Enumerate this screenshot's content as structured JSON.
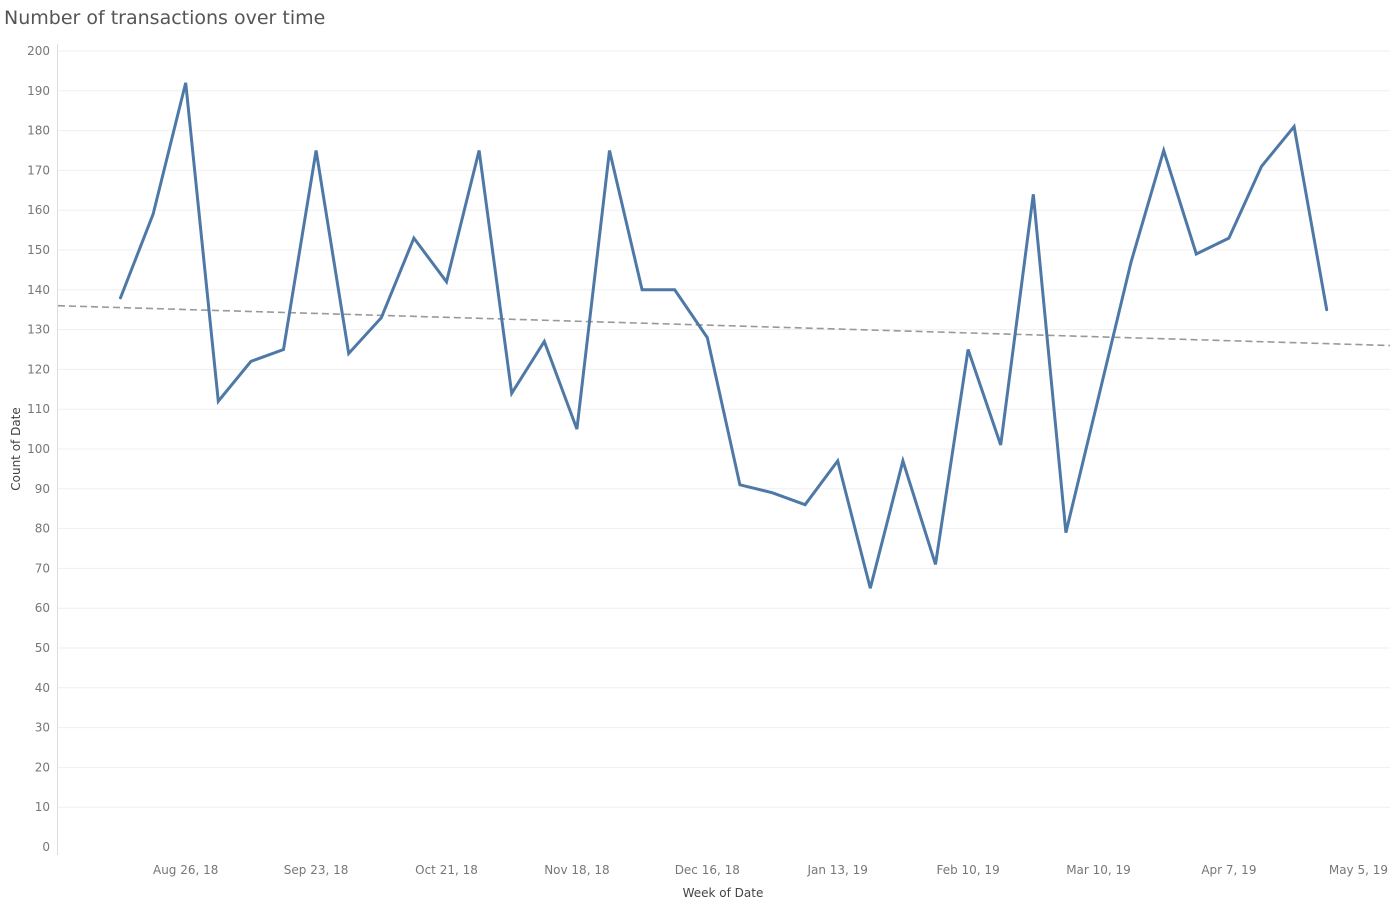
{
  "chart_data": {
    "type": "line",
    "title": "Number of transactions over time",
    "xlabel": "Week of Date",
    "ylabel": "Count of Date",
    "ylim": [
      0,
      200
    ],
    "yticks": [
      0,
      10,
      20,
      30,
      40,
      50,
      60,
      70,
      80,
      90,
      100,
      110,
      120,
      130,
      140,
      150,
      160,
      170,
      180,
      190,
      200
    ],
    "xtick_labels": [
      "Aug 26, 18",
      "Sep 23, 18",
      "Oct 21, 18",
      "Nov 18, 18",
      "Dec 16, 18",
      "Jan 13, 19",
      "Feb 10, 19",
      "Mar 10, 19",
      "Apr 7, 19",
      "May 5, 19"
    ],
    "grid": true,
    "series": [
      {
        "color": "#4e79a7",
        "x": [
          "Aug 12, 18",
          "Aug 19, 18",
          "Aug 26, 18",
          "Sep 2, 18",
          "Sep 9, 18",
          "Sep 16, 18",
          "Sep 23, 18",
          "Sep 30, 18",
          "Oct 7, 18",
          "Oct 14, 18",
          "Oct 21, 18",
          "Oct 28, 18",
          "Nov 4, 18",
          "Nov 11, 18",
          "Nov 18, 18",
          "Nov 25, 18",
          "Dec 2, 18",
          "Dec 9, 18",
          "Dec 16, 18",
          "Dec 23, 18",
          "Dec 30, 18",
          "Jan 6, 19",
          "Jan 13, 19",
          "Jan 20, 19",
          "Jan 27, 19",
          "Feb 3, 19",
          "Feb 10, 19",
          "Feb 17, 19",
          "Feb 24, 19",
          "Mar 3, 19",
          "Mar 10, 19",
          "Mar 17, 19",
          "Mar 24, 19",
          "Mar 31, 19",
          "Apr 7, 19",
          "Apr 14, 19",
          "Apr 21, 19",
          "Apr 28, 19"
        ],
        "values": [
          138,
          159,
          192,
          112,
          122,
          125,
          175,
          124,
          133,
          153,
          142,
          175,
          114,
          127,
          105,
          175,
          140,
          140,
          128,
          91,
          89,
          86,
          97,
          65,
          97,
          71,
          125,
          101,
          164,
          79,
          113,
          147,
          175,
          149,
          153,
          171,
          181,
          135
        ]
      }
    ],
    "trend_line": {
      "style": "dashed",
      "color": "#999999",
      "start_value": 136,
      "end_value": 126
    }
  }
}
